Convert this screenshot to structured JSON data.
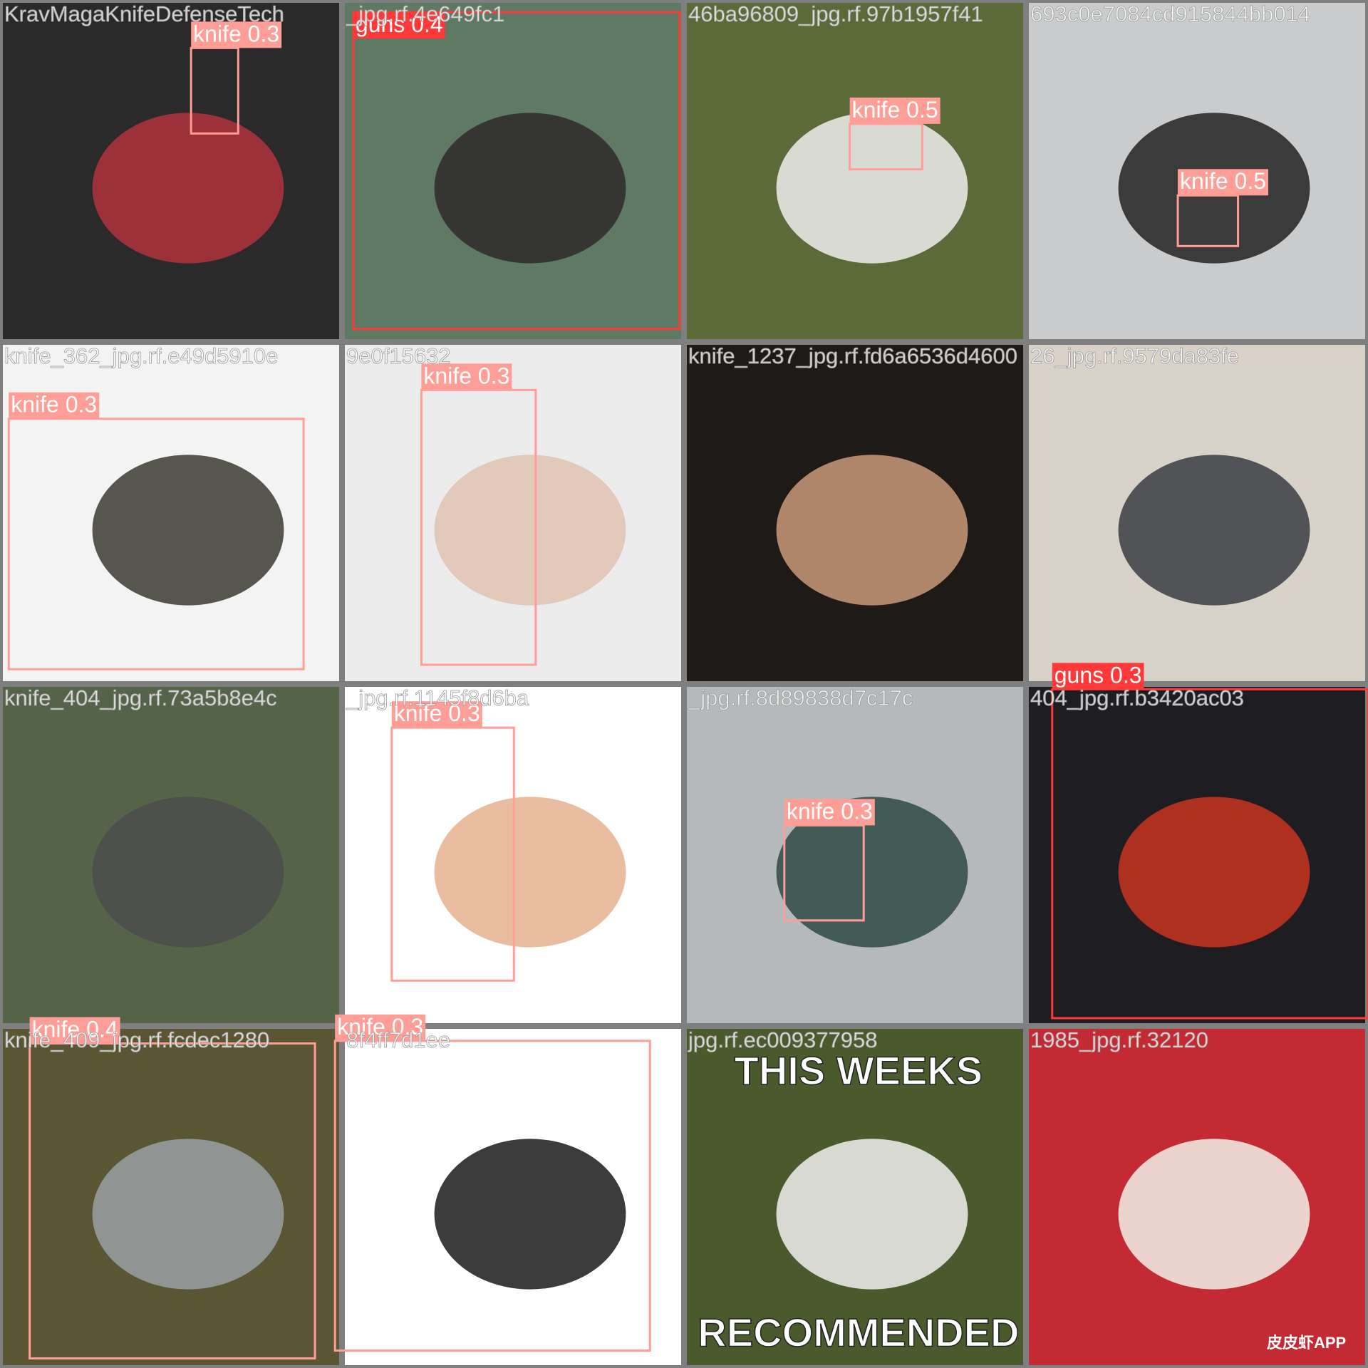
{
  "mosaic": {
    "tiles": [
      {
        "filename": "KravMagaKnifeDefenseTech",
        "detections": [
          {
            "label": "knife 0.3",
            "color": "#ff9d97"
          }
        ]
      },
      {
        "filename": "_jpg.rf.4e649fc1",
        "detections": [
          {
            "label": "guns 0.4",
            "color": "#ff3838"
          }
        ]
      },
      {
        "filename": "46ba96809_jpg.rf.97b1957f41",
        "detections": [
          {
            "label": "knife 0.5",
            "color": "#ff9d97"
          }
        ]
      },
      {
        "filename": "693c0e7084cd915844bb014",
        "detections": [
          {
            "label": "knife 0.5",
            "color": "#ff9d97"
          }
        ]
      },
      {
        "filename": "knife_362_jpg.rf.e49d5910e",
        "detections": [
          {
            "label": "knife 0.3",
            "color": "#ff9d97"
          }
        ]
      },
      {
        "filename": "9e0f15632",
        "detections": [
          {
            "label": "knife 0.3",
            "color": "#ff9d97"
          }
        ]
      },
      {
        "filename": "knife_1237_jpg.rf.fd6a6536d4600",
        "detections": []
      },
      {
        "filename": "26_jpg.rf.9579da83fe",
        "detections": []
      },
      {
        "filename": "knife_404_jpg.rf.73a5b8e4c",
        "detections": []
      },
      {
        "filename": "_jpg.rf.1145f8d6ba",
        "detections": [
          {
            "label": "knife 0.3",
            "color": "#ff9d97"
          }
        ]
      },
      {
        "filename": "_jpg.rf.8d89838d7c17c",
        "detections": [
          {
            "label": "knife 0.3",
            "color": "#ff9d97"
          }
        ]
      },
      {
        "filename": "404_jpg.rf.b3420ac03",
        "detections": [
          {
            "label": "guns 0.3",
            "color": "#ff3838"
          }
        ]
      },
      {
        "filename": "knife_409_jpg.rf.fcdec1280",
        "detections": [
          {
            "label": "knife 0.4",
            "color": "#ff9d97"
          }
        ]
      },
      {
        "filename": "8f4ff7d1ee",
        "detections": [
          {
            "label": "knife 0.3",
            "color": "#ff9d97"
          }
        ]
      },
      {
        "filename": "jpg.rf.ec009377958",
        "detections": [],
        "image_texts": [
          "THIS WEEKS",
          "RECOMMENDED"
        ]
      },
      {
        "filename": "1985_jpg.rf.32120",
        "detections": [],
        "image_texts": [
          "皮皮虾APP"
        ]
      }
    ]
  }
}
